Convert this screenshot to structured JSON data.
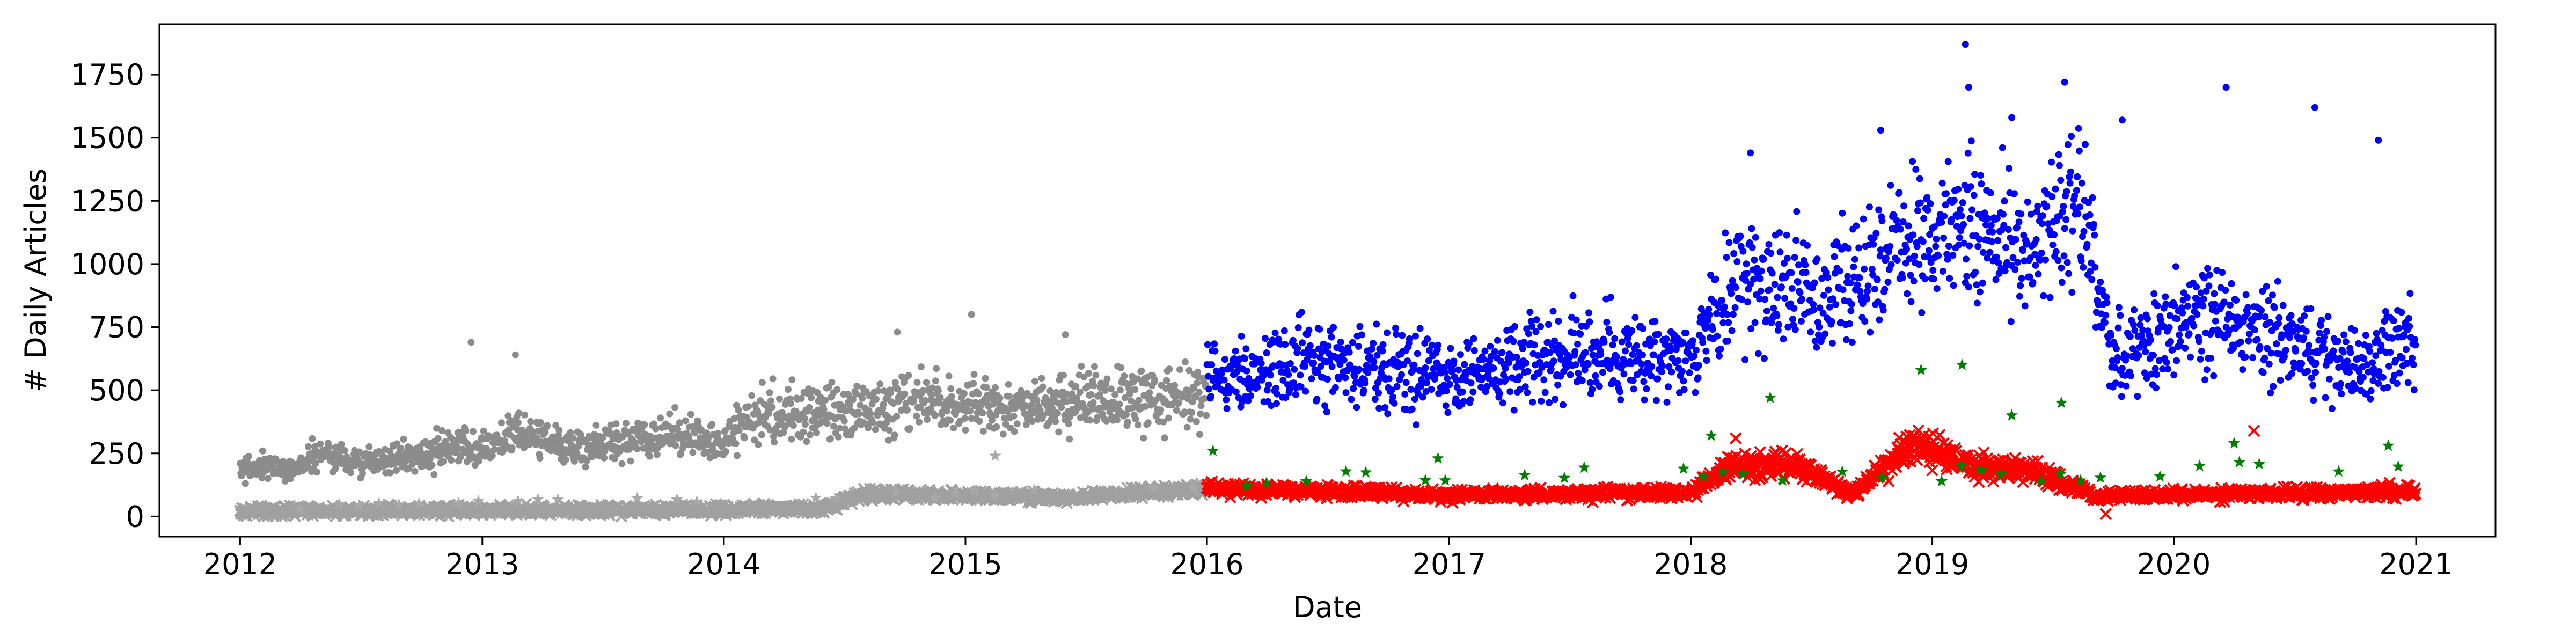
{
  "chart_data": {
    "type": "scatter",
    "title": "",
    "xlabel": "Date",
    "ylabel": "# Daily Articles",
    "x_range": [
      "2011-09-01",
      "2021-05-01"
    ],
    "ylim": [
      -80,
      1950
    ],
    "grid": false,
    "legend": "none",
    "x_ticks": [
      "2012",
      "2013",
      "2014",
      "2015",
      "2016",
      "2017",
      "2018",
      "2019",
      "2020",
      "2021"
    ],
    "y_ticks": [
      0,
      250,
      500,
      750,
      1000,
      1250,
      1500,
      1750
    ],
    "series": [
      {
        "marker": "dot",
        "color": "#8c8c8c",
        "x_range": [
          "2012-01-01",
          "2015-12-31"
        ],
        "trend": [
          [
            "2012-01-01",
            185
          ],
          [
            "2012-04-01",
            200
          ],
          [
            "2012-05-01",
            255
          ],
          [
            "2012-07-01",
            210
          ],
          [
            "2013-01-01",
            280
          ],
          [
            "2013-03-01",
            330
          ],
          [
            "2013-06-01",
            270
          ],
          [
            "2013-09-01",
            320
          ],
          [
            "2014-01-01",
            310
          ],
          [
            "2014-03-01",
            420
          ],
          [
            "2014-07-01",
            400
          ],
          [
            "2014-11-01",
            470
          ],
          [
            "2015-02-01",
            420
          ],
          [
            "2015-06-01",
            450
          ],
          [
            "2015-12-31",
            480
          ]
        ],
        "outliers": [
          [
            "2012-12-15",
            690
          ],
          [
            "2013-02-20",
            640
          ],
          [
            "2014-09-20",
            730
          ],
          [
            "2015-01-10",
            800
          ],
          [
            "2015-06-01",
            720
          ]
        ]
      },
      {
        "marker": "x",
        "color": "#a0a0a0",
        "x_range": [
          "2012-01-01",
          "2015-12-31"
        ],
        "trend": [
          [
            "2012-01-01",
            20
          ],
          [
            "2013-06-01",
            25
          ],
          [
            "2014-06-01",
            30
          ],
          [
            "2014-08-01",
            90
          ],
          [
            "2015-06-01",
            75
          ],
          [
            "2015-12-31",
            110
          ]
        ],
        "outliers": []
      },
      {
        "marker": "star",
        "color": "#a8a8a8",
        "x_range": [
          "2012-01-01",
          "2015-12-31"
        ],
        "trend": [
          [
            "2012-01-01",
            30
          ],
          [
            "2015-12-31",
            90
          ]
        ],
        "outliers": [
          [
            "2015-02-15",
            240
          ]
        ]
      },
      {
        "marker": "dot",
        "color": "#0000ff",
        "x_range": [
          "2016-01-01",
          "2020-12-31"
        ],
        "trend": [
          [
            "2016-01-01",
            540
          ],
          [
            "2016-07-01",
            620
          ],
          [
            "2017-01-01",
            560
          ],
          [
            "2017-07-01",
            640
          ],
          [
            "2018-01-01",
            650
          ],
          [
            "2018-03-15",
            960
          ],
          [
            "2018-08-01",
            870
          ],
          [
            "2018-11-01",
            1050
          ],
          [
            "2019-02-01",
            1150
          ],
          [
            "2019-06-01",
            1080
          ],
          [
            "2019-08-15",
            1250
          ],
          [
            "2019-10-01",
            620
          ],
          [
            "2020-02-01",
            800
          ],
          [
            "2020-06-01",
            720
          ],
          [
            "2020-10-01",
            600
          ],
          [
            "2020-12-31",
            700
          ]
        ],
        "outliers": [
          [
            "2018-04-01",
            1440
          ],
          [
            "2018-10-15",
            1530
          ],
          [
            "2019-02-20",
            1870
          ],
          [
            "2019-02-25",
            1700
          ],
          [
            "2019-05-01",
            1580
          ],
          [
            "2019-07-20",
            1720
          ],
          [
            "2019-10-15",
            1570
          ],
          [
            "2020-03-20",
            1700
          ],
          [
            "2020-08-01",
            1620
          ],
          [
            "2020-11-05",
            1490
          ]
        ]
      },
      {
        "marker": "x",
        "color": "#ff0000",
        "x_range": [
          "2016-01-01",
          "2020-12-31"
        ],
        "trend": [
          [
            "2016-01-01",
            110
          ],
          [
            "2017-01-01",
            85
          ],
          [
            "2018-01-01",
            95
          ],
          [
            "2018-03-01",
            200
          ],
          [
            "2018-06-01",
            210
          ],
          [
            "2018-09-01",
            90
          ],
          [
            "2018-12-01",
            290
          ],
          [
            "2019-03-01",
            200
          ],
          [
            "2019-06-01",
            180
          ],
          [
            "2019-09-01",
            80
          ],
          [
            "2020-12-31",
            100
          ]
        ],
        "outliers": [
          [
            "2018-03-10",
            310
          ],
          [
            "2020-05-01",
            340
          ],
          [
            "2019-09-20",
            10
          ]
        ]
      },
      {
        "marker": "star",
        "color": "#008000",
        "x_range": [
          "2016-01-01",
          "2020-12-31"
        ],
        "trend": [
          [
            "2016-01-01",
            130
          ],
          [
            "2020-12-31",
            160
          ]
        ],
        "outliers": [
          [
            "2016-01-10",
            260
          ],
          [
            "2016-12-15",
            230
          ],
          [
            "2018-02-01",
            320
          ],
          [
            "2018-05-01",
            470
          ],
          [
            "2018-12-15",
            580
          ],
          [
            "2019-02-15",
            600
          ],
          [
            "2019-05-01",
            400
          ],
          [
            "2019-07-15",
            450
          ],
          [
            "2020-04-01",
            290
          ],
          [
            "2020-11-20",
            280
          ]
        ]
      }
    ]
  }
}
